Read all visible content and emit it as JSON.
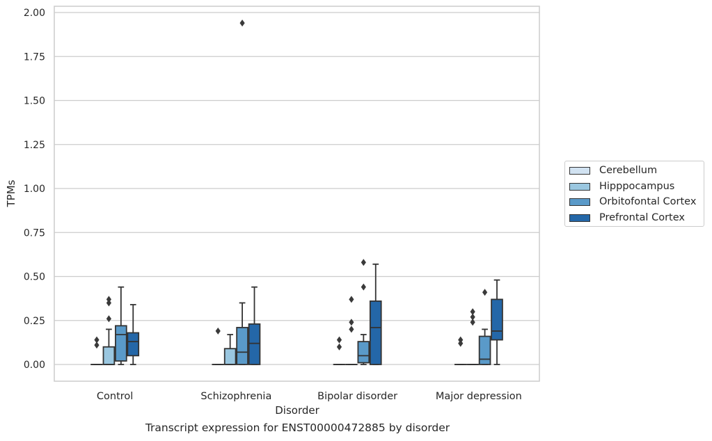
{
  "caption": "Transcript expression for ENST00000472885 by disorder",
  "chart_data": {
    "type": "box",
    "xlabel": "Disorder",
    "ylabel": "TPMs",
    "ylim": [
      -0.09,
      2.04
    ],
    "yticks": [
      "0.00",
      "0.25",
      "0.50",
      "0.75",
      "1.00",
      "1.25",
      "1.50",
      "1.75",
      "2.00"
    ],
    "grid": true,
    "legend_position": "right",
    "categories": [
      "Control",
      "Schizophrenia",
      "Bipolar disorder",
      "Major depression"
    ],
    "series": [
      {
        "name": "Cerebellum",
        "color": "#d1e2f1",
        "boxes": [
          {
            "min": 0,
            "q1": 0,
            "median": 0,
            "q3": 0,
            "max": 0,
            "outliers": [
              0.11,
              0.14
            ]
          },
          {
            "min": 0,
            "q1": 0,
            "median": 0,
            "q3": 0,
            "max": 0,
            "outliers": [
              0.19
            ]
          },
          {
            "min": 0,
            "q1": 0,
            "median": 0,
            "q3": 0,
            "max": 0,
            "outliers": [
              0.1,
              0.14
            ]
          },
          {
            "min": 0,
            "q1": 0,
            "median": 0,
            "q3": 0,
            "max": 0,
            "outliers": [
              0.12,
              0.14
            ]
          }
        ]
      },
      {
        "name": "Hipppocampus",
        "color": "#9ac7e0",
        "boxes": [
          {
            "min": 0,
            "q1": 0,
            "median": 0,
            "q3": 0.1,
            "max": 0.2,
            "outliers": [
              0.26,
              0.35,
              0.37
            ]
          },
          {
            "min": 0,
            "q1": 0,
            "median": 0,
            "q3": 0.09,
            "max": 0.17,
            "outliers": []
          },
          {
            "min": 0,
            "q1": 0,
            "median": 0,
            "q3": 0,
            "max": 0,
            "outliers": [
              0.2,
              0.24,
              0.37
            ]
          },
          {
            "min": 0,
            "q1": 0,
            "median": 0,
            "q3": 0,
            "max": 0,
            "outliers": [
              0.24,
              0.27,
              0.3
            ]
          }
        ]
      },
      {
        "name": "Orbitofontal Cortex",
        "color": "#5a9ac9",
        "boxes": [
          {
            "min": 0,
            "q1": 0.02,
            "median": 0.17,
            "q3": 0.22,
            "max": 0.44,
            "outliers": []
          },
          {
            "min": 0,
            "q1": 0,
            "median": 0.07,
            "q3": 0.21,
            "max": 0.35,
            "outliers": [
              1.94
            ]
          },
          {
            "min": 0,
            "q1": 0.01,
            "median": 0.05,
            "q3": 0.13,
            "max": 0.17,
            "outliers": [
              0.44,
              0.58
            ]
          },
          {
            "min": 0,
            "q1": 0,
            "median": 0.03,
            "q3": 0.16,
            "max": 0.2,
            "outliers": [
              0.41
            ]
          }
        ]
      },
      {
        "name": "Prefrontal Cortex",
        "color": "#2467a8",
        "boxes": [
          {
            "min": 0,
            "q1": 0.05,
            "median": 0.13,
            "q3": 0.18,
            "max": 0.34,
            "outliers": []
          },
          {
            "min": 0,
            "q1": 0,
            "median": 0.12,
            "q3": 0.23,
            "max": 0.44,
            "outliers": []
          },
          {
            "min": 0,
            "q1": 0,
            "median": 0.21,
            "q3": 0.36,
            "max": 0.57,
            "outliers": []
          },
          {
            "min": 0,
            "q1": 0.14,
            "median": 0.19,
            "q3": 0.37,
            "max": 0.48,
            "outliers": []
          }
        ]
      }
    ]
  }
}
